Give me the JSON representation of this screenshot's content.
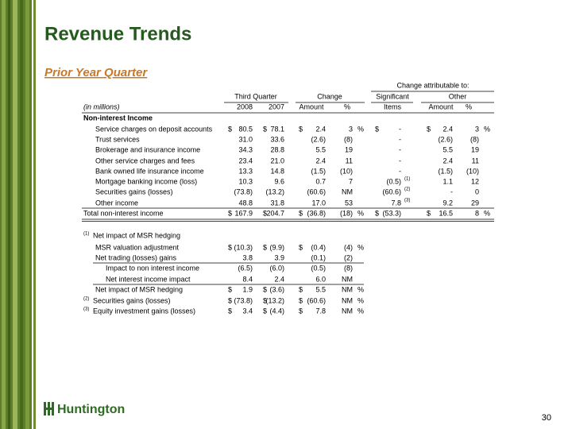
{
  "header": {
    "title": "Revenue Trends",
    "subtitle": "Prior Year Quarter",
    "page_number": "30",
    "logo": "Huntington"
  },
  "table": {
    "group_header": "Change attributable to:",
    "column_groups": [
      "Third Quarter",
      "Change",
      "Significant",
      "Other"
    ],
    "columns": [
      "(in millions)",
      "2008",
      "2007",
      "Amount",
      "%",
      "Items",
      "Amount",
      "%"
    ],
    "rows": [
      {
        "label": "Non-interest Income",
        "cells": []
      },
      {
        "label": "Service charges on deposit accounts",
        "cells": [
          {
            "cur": "$",
            "v": "80.5"
          },
          {
            "cur": "$",
            "v": "78.1"
          },
          {
            "cur": "$",
            "v": "2.4"
          },
          {
            "v": "3",
            "unit": "%"
          },
          {
            "cur": "$",
            "v": "-"
          },
          {
            "cur": "$",
            "v": "2.4"
          },
          {
            "v": "3",
            "unit": "%"
          }
        ]
      },
      {
        "label": "Trust services",
        "cells": [
          {
            "v": "31.0"
          },
          {
            "v": "33.6"
          },
          {
            "v": "(2.6)"
          },
          {
            "v": "(8)"
          },
          {
            "v": "-"
          },
          {
            "v": "(2.6)"
          },
          {
            "v": "(8)"
          }
        ]
      },
      {
        "label": "Brokerage and insurance income",
        "cells": [
          {
            "v": "34.3"
          },
          {
            "v": "28.8"
          },
          {
            "v": "5.5"
          },
          {
            "v": "19"
          },
          {
            "v": "-"
          },
          {
            "v": "5.5"
          },
          {
            "v": "19"
          }
        ]
      },
      {
        "label": "Other service charges and fees",
        "cells": [
          {
            "v": "23.4"
          },
          {
            "v": "21.0"
          },
          {
            "v": "2.4"
          },
          {
            "v": "11"
          },
          {
            "v": "-"
          },
          {
            "v": "2.4"
          },
          {
            "v": "11"
          }
        ]
      },
      {
        "label": "Bank owned life insurance income",
        "cells": [
          {
            "v": "13.3"
          },
          {
            "v": "14.8"
          },
          {
            "v": "(1.5)"
          },
          {
            "v": "(10)"
          },
          {
            "v": "-"
          },
          {
            "v": "(1.5)"
          },
          {
            "v": "(10)"
          }
        ]
      },
      {
        "label": "Mortgage banking income (loss)",
        "cells": [
          {
            "v": "10.3"
          },
          {
            "v": "9.6"
          },
          {
            "v": "0.7"
          },
          {
            "v": "7"
          },
          {
            "v": "(0.5)",
            "note": "(1)"
          },
          {
            "v": "1.1"
          },
          {
            "v": "12"
          }
        ]
      },
      {
        "label": "Securities gains (losses)",
        "cells": [
          {
            "v": "(73.8)"
          },
          {
            "v": "(13.2)"
          },
          {
            "v": "(60.6)"
          },
          {
            "v": "NM"
          },
          {
            "v": "(60.6)",
            "note": "(2)"
          },
          {
            "v": "-"
          },
          {
            "v": "0"
          }
        ]
      },
      {
        "label": "Other income",
        "cells": [
          {
            "v": "48.8"
          },
          {
            "v": "31.8"
          },
          {
            "v": "17.0"
          },
          {
            "v": "53"
          },
          {
            "v": "7.8",
            "note": "(3)"
          },
          {
            "v": "9.2"
          },
          {
            "v": "29"
          }
        ]
      },
      {
        "label": "Total non-interest income",
        "cells": [
          {
            "cur": "$",
            "v": "167.9"
          },
          {
            "cur": "$",
            "v": "204.7"
          },
          {
            "cur": "$",
            "v": "(36.8)"
          },
          {
            "v": "(18)",
            "unit": "%"
          },
          {
            "cur": "$",
            "v": "(53.3)"
          },
          {
            "cur": "$",
            "v": "16.5"
          },
          {
            "v": "8",
            "unit": "%"
          }
        ]
      },
      {
        "note": "(1)",
        "label": "Net impact of MSR hedging",
        "cells": []
      },
      {
        "label": "MSR valuation adjustment",
        "cells": [
          {
            "cur": "$",
            "v": "(10.3)"
          },
          {
            "cur": "$",
            "v": "(9.9)"
          },
          {
            "cur": "$",
            "v": "(0.4)"
          },
          {
            "v": "(4)",
            "unit": "%"
          }
        ]
      },
      {
        "label": "Net trading (losses) gains",
        "cells": [
          {
            "v": "3.8"
          },
          {
            "v": "3.9"
          },
          {
            "v": "(0.1)"
          },
          {
            "v": "(2)"
          }
        ]
      },
      {
        "label": "Impact to non interest income",
        "cells": [
          {
            "v": "(6.5)"
          },
          {
            "v": "(6.0)"
          },
          {
            "v": "(0.5)"
          },
          {
            "v": "(8)"
          }
        ]
      },
      {
        "label": "Net interest income impact",
        "cells": [
          {
            "v": "8.4"
          },
          {
            "v": "2.4"
          },
          {
            "v": "6.0"
          },
          {
            "v": "NM"
          }
        ]
      },
      {
        "label": "Net impact of MSR hedging",
        "cells": [
          {
            "cur": "$",
            "v": "1.9"
          },
          {
            "cur": "$",
            "v": "(3.6)"
          },
          {
            "cur": "$",
            "v": "5.5"
          },
          {
            "v": "NM",
            "unit": "%"
          }
        ]
      },
      {
        "note": "(2)",
        "label": "Securities gains (losses)",
        "cells": [
          {
            "cur": "$",
            "v": "(73.8)"
          },
          {
            "cur": "$",
            "v": "(13.2)"
          },
          {
            "cur": "$",
            "v": "(60.6)"
          },
          {
            "v": "NM",
            "unit": "%"
          }
        ]
      },
      {
        "note": "(3)",
        "label": "Equity investment gains (losses)",
        "cells": [
          {
            "cur": "$",
            "v": "3.4"
          },
          {
            "cur": "$",
            "v": "(4.4)"
          },
          {
            "cur": "$",
            "v": "7.8"
          },
          {
            "v": "NM",
            "unit": "%"
          }
        ]
      }
    ]
  }
}
